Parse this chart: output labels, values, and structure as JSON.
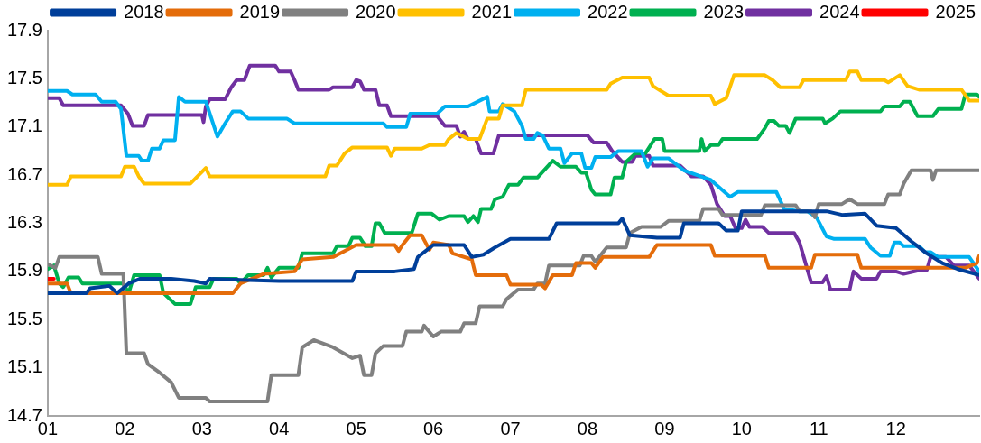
{
  "chart_data": {
    "type": "line",
    "legend": "top",
    "grid": false,
    "marker": "none",
    "line_style": "solid",
    "xlim": [
      1,
      13.08
    ],
    "xticks": [
      {
        "value": 1,
        "label": "01"
      },
      {
        "value": 2,
        "label": "02"
      },
      {
        "value": 3,
        "label": "03"
      },
      {
        "value": 4,
        "label": "04"
      },
      {
        "value": 5,
        "label": "05"
      },
      {
        "value": 6,
        "label": "06"
      },
      {
        "value": 7,
        "label": "07"
      },
      {
        "value": 8,
        "label": "08"
      },
      {
        "value": 9,
        "label": "09"
      },
      {
        "value": 10,
        "label": "10"
      },
      {
        "value": 11,
        "label": "11"
      },
      {
        "value": 12,
        "label": "12"
      }
    ],
    "ylim": [
      14.7,
      17.9
    ],
    "yticks": [
      14.7,
      15.1,
      15.5,
      15.9,
      16.3,
      16.7,
      17.1,
      17.5,
      17.9
    ],
    "series": [
      {
        "name": "2018",
        "color": "#003f9a",
        "x": [
          1.0,
          1.5,
          1.55,
          1.8,
          1.9,
          2.05,
          2.2,
          2.6,
          2.9,
          3.05,
          3.1,
          3.5,
          4.0,
          4.95,
          5.0,
          5.5,
          5.75,
          5.8,
          6.0,
          6.4,
          6.5,
          6.65,
          6.8,
          7.0,
          7.5,
          7.6,
          8.4,
          8.45,
          8.55,
          8.9,
          9.2,
          9.25,
          9.7,
          9.8,
          9.95,
          10.0,
          11.1,
          11.3,
          11.6,
          11.75,
          12.0,
          12.2,
          12.4,
          12.6,
          12.8,
          13.08
        ],
        "values": [
          15.72,
          15.72,
          15.76,
          15.78,
          15.72,
          15.8,
          15.84,
          15.84,
          15.82,
          15.8,
          15.84,
          15.83,
          15.82,
          15.82,
          15.9,
          15.9,
          15.92,
          16.02,
          16.12,
          16.12,
          16.02,
          16.04,
          16.1,
          16.17,
          16.17,
          16.3,
          16.3,
          16.34,
          16.2,
          16.18,
          16.18,
          16.3,
          16.3,
          16.24,
          16.24,
          16.4,
          16.4,
          16.37,
          16.38,
          16.28,
          16.26,
          16.15,
          16.05,
          15.97,
          15.92,
          15.87
        ]
      },
      {
        "name": "2019",
        "color": "#e46c0a",
        "x": [
          1.0,
          1.25,
          1.3,
          3.4,
          3.5,
          3.8,
          4.2,
          4.3,
          4.7,
          4.85,
          5.0,
          5.5,
          5.55,
          5.6,
          5.7,
          5.85,
          5.95,
          6.0,
          6.2,
          6.25,
          6.5,
          6.55,
          6.95,
          7.0,
          7.4,
          7.45,
          7.55,
          7.8,
          7.85,
          8.05,
          8.1,
          8.2,
          8.8,
          8.9,
          9.6,
          9.65,
          10.3,
          10.35,
          10.9,
          10.95,
          11.5,
          11.55,
          12.9,
          13.05,
          13.08
        ],
        "values": [
          15.8,
          15.8,
          15.72,
          15.72,
          15.8,
          15.88,
          15.9,
          16.0,
          16.02,
          16.07,
          16.12,
          16.12,
          16.07,
          16.12,
          16.2,
          16.2,
          16.08,
          16.14,
          16.12,
          16.05,
          16.0,
          15.87,
          15.87,
          15.79,
          15.79,
          15.76,
          15.87,
          15.87,
          15.97,
          15.97,
          15.93,
          16.02,
          16.02,
          16.12,
          16.12,
          16.03,
          16.03,
          15.93,
          15.93,
          16.04,
          16.04,
          15.93,
          15.93,
          15.97,
          16.03
        ]
      },
      {
        "name": "2020",
        "color": "#808080",
        "x": [
          1.0,
          1.1,
          1.15,
          1.65,
          1.7,
          1.98,
          2.02,
          2.25,
          2.3,
          2.45,
          2.6,
          2.7,
          3.05,
          3.1,
          3.85,
          3.9,
          4.25,
          4.3,
          4.45,
          4.7,
          4.95,
          5.05,
          5.1,
          5.2,
          5.25,
          5.35,
          5.6,
          5.65,
          5.85,
          5.88,
          6.0,
          6.1,
          6.35,
          6.4,
          6.55,
          6.6,
          6.9,
          6.95,
          7.1,
          7.3,
          7.35,
          7.45,
          7.5,
          7.9,
          7.95,
          8.05,
          8.1,
          8.25,
          8.5,
          8.55,
          8.7,
          8.95,
          9.05,
          9.45,
          9.5,
          9.7,
          9.75,
          10.25,
          10.3,
          10.7,
          10.75,
          10.9,
          10.95,
          11.0,
          11.3,
          11.4,
          11.5,
          11.85,
          11.9,
          12.05,
          12.1,
          12.2,
          12.45,
          12.48,
          12.52,
          13.08
        ],
        "values": [
          15.96,
          15.93,
          16.02,
          16.02,
          15.88,
          15.88,
          15.22,
          15.22,
          15.13,
          15.06,
          14.98,
          14.85,
          14.85,
          14.82,
          14.82,
          15.04,
          15.04,
          15.27,
          15.33,
          15.27,
          15.18,
          15.2,
          15.04,
          15.04,
          15.22,
          15.28,
          15.28,
          15.4,
          15.4,
          15.45,
          15.36,
          15.4,
          15.4,
          15.47,
          15.47,
          15.61,
          15.61,
          15.67,
          15.75,
          15.75,
          15.8,
          15.8,
          15.95,
          15.95,
          16.03,
          16.03,
          15.98,
          16.1,
          16.1,
          16.22,
          16.27,
          16.27,
          16.32,
          16.32,
          16.42,
          16.42,
          16.37,
          16.37,
          16.45,
          16.45,
          16.4,
          16.4,
          16.35,
          16.46,
          16.46,
          16.5,
          16.46,
          16.46,
          16.54,
          16.54,
          16.63,
          16.74,
          16.74,
          16.66,
          16.74,
          16.74
        ]
      },
      {
        "name": "2021",
        "color": "#ffc000",
        "x": [
          1.0,
          1.25,
          1.3,
          1.95,
          2.0,
          2.12,
          2.18,
          2.25,
          2.85,
          3.05,
          3.1,
          4.6,
          4.65,
          4.75,
          4.85,
          4.95,
          5.4,
          5.45,
          5.5,
          5.85,
          5.95,
          6.15,
          6.2,
          6.3,
          6.45,
          6.6,
          6.7,
          6.85,
          6.9,
          7.15,
          7.2,
          8.25,
          8.3,
          8.45,
          8.8,
          8.85,
          9.05,
          9.6,
          9.65,
          9.8,
          9.9,
          10.3,
          10.4,
          10.5,
          10.75,
          10.8,
          11.35,
          11.4,
          11.5,
          11.55,
          11.85,
          11.9,
          12.05,
          12.15,
          12.3,
          12.85,
          12.95,
          13.08
        ],
        "values": [
          16.62,
          16.62,
          16.69,
          16.69,
          16.77,
          16.77,
          16.69,
          16.63,
          16.63,
          16.76,
          16.69,
          16.69,
          16.78,
          16.78,
          16.88,
          16.93,
          16.93,
          16.86,
          16.92,
          16.92,
          16.95,
          16.95,
          17.0,
          17.05,
          17.0,
          17.0,
          17.17,
          17.17,
          17.28,
          17.28,
          17.41,
          17.41,
          17.46,
          17.51,
          17.51,
          17.44,
          17.36,
          17.36,
          17.29,
          17.34,
          17.53,
          17.53,
          17.49,
          17.43,
          17.43,
          17.49,
          17.49,
          17.56,
          17.56,
          17.49,
          17.49,
          17.47,
          17.53,
          17.44,
          17.41,
          17.41,
          17.32,
          17.32
        ]
      },
      {
        "name": "2022",
        "color": "#00b0f0",
        "x": [
          1.0,
          1.25,
          1.32,
          1.62,
          1.7,
          1.88,
          1.95,
          2.02,
          2.18,
          2.22,
          2.3,
          2.35,
          2.45,
          2.5,
          2.65,
          2.7,
          2.78,
          3.05,
          3.2,
          3.3,
          3.4,
          3.5,
          3.6,
          4.1,
          4.2,
          5.35,
          5.4,
          5.65,
          5.7,
          6.05,
          6.15,
          6.45,
          6.7,
          6.73,
          6.85,
          6.9,
          7.05,
          7.15,
          7.2,
          7.3,
          7.35,
          7.42,
          7.5,
          7.65,
          7.7,
          7.8,
          7.92,
          7.97,
          8.05,
          8.1,
          8.3,
          8.4,
          8.7,
          8.78,
          8.85,
          9.05,
          9.25,
          9.6,
          9.85,
          9.95,
          10.45,
          10.55,
          10.75,
          10.85,
          10.97,
          11.1,
          11.2,
          11.6,
          11.67,
          11.8,
          11.92,
          11.98,
          12.05,
          12.1,
          12.3,
          12.38,
          12.45,
          12.55,
          12.95,
          13.08
        ],
        "values": [
          17.4,
          17.4,
          17.37,
          17.37,
          17.31,
          17.31,
          17.25,
          16.86,
          16.86,
          16.82,
          16.82,
          16.92,
          16.92,
          16.99,
          16.99,
          17.35,
          17.31,
          17.31,
          17.02,
          17.13,
          17.23,
          17.23,
          17.17,
          17.17,
          17.13,
          17.13,
          17.1,
          17.1,
          17.21,
          17.21,
          17.27,
          17.27,
          17.35,
          17.23,
          17.23,
          17.29,
          17.23,
          17.11,
          17.0,
          17.0,
          17.05,
          17.03,
          16.92,
          16.92,
          16.8,
          16.88,
          16.88,
          16.76,
          16.76,
          16.85,
          16.85,
          16.9,
          16.9,
          16.77,
          16.84,
          16.84,
          16.74,
          16.66,
          16.52,
          16.56,
          16.56,
          16.42,
          16.4,
          16.4,
          16.35,
          16.19,
          16.17,
          16.17,
          16.1,
          16.03,
          16.03,
          16.14,
          16.14,
          16.11,
          16.11,
          16.06,
          16.06,
          16.02,
          16.02,
          15.9
        ]
      },
      {
        "name": "2023",
        "color": "#00b050",
        "x": [
          1.0,
          1.08,
          1.15,
          1.2,
          1.27,
          1.4,
          1.45,
          1.98,
          2.05,
          2.12,
          2.45,
          2.5,
          2.65,
          2.85,
          2.92,
          3.1,
          3.15,
          3.45,
          3.5,
          3.6,
          3.8,
          3.85,
          3.9,
          4.0,
          4.25,
          4.3,
          4.7,
          4.75,
          4.9,
          4.95,
          5.05,
          5.12,
          5.2,
          5.25,
          5.3,
          5.37,
          5.72,
          5.8,
          5.98,
          6.08,
          6.2,
          6.4,
          6.45,
          6.52,
          6.58,
          6.62,
          6.75,
          6.8,
          6.9,
          6.98,
          7.1,
          7.17,
          7.35,
          7.55,
          7.65,
          7.85,
          7.92,
          7.98,
          8.05,
          8.1,
          8.3,
          8.35,
          8.45,
          8.5,
          8.62,
          8.75,
          8.87,
          8.97,
          9.0,
          9.45,
          9.48,
          9.52,
          9.6,
          9.7,
          9.75,
          10.2,
          10.3,
          10.35,
          10.42,
          10.48,
          10.57,
          10.62,
          10.7,
          11.05,
          11.08,
          11.18,
          11.28,
          11.8,
          11.85,
          12.05,
          12.1,
          12.18,
          12.28,
          12.48,
          12.55,
          12.85,
          12.9,
          13.05,
          13.08
        ],
        "values": [
          15.92,
          15.95,
          15.8,
          15.77,
          15.85,
          15.85,
          15.8,
          15.8,
          15.72,
          15.87,
          15.87,
          15.72,
          15.63,
          15.63,
          15.77,
          15.77,
          15.84,
          15.84,
          15.8,
          15.87,
          15.87,
          15.93,
          15.85,
          15.93,
          15.93,
          16.05,
          16.05,
          16.11,
          16.11,
          16.18,
          16.18,
          16.11,
          16.11,
          16.3,
          16.3,
          16.22,
          16.22,
          16.38,
          16.38,
          16.33,
          16.36,
          16.36,
          16.31,
          16.36,
          16.31,
          16.42,
          16.42,
          16.5,
          16.52,
          16.62,
          16.62,
          16.68,
          16.68,
          16.82,
          16.77,
          16.77,
          16.72,
          16.72,
          16.58,
          16.54,
          16.54,
          16.68,
          16.68,
          16.81,
          16.88,
          16.88,
          17.0,
          17.0,
          16.9,
          16.9,
          17.0,
          16.9,
          16.95,
          16.95,
          17.0,
          17.0,
          17.09,
          17.15,
          17.15,
          17.11,
          17.11,
          17.05,
          17.17,
          17.17,
          17.13,
          17.17,
          17.23,
          17.23,
          17.27,
          17.27,
          17.31,
          17.31,
          17.19,
          17.19,
          17.25,
          17.25,
          17.37,
          17.37,
          17.35
        ]
      },
      {
        "name": "2024",
        "color": "#7030a0",
        "x": [
          1.0,
          1.15,
          1.2,
          1.95,
          2.04,
          2.1,
          2.25,
          2.3,
          3.0,
          3.02,
          3.05,
          3.1,
          3.3,
          3.38,
          3.45,
          3.55,
          3.62,
          3.95,
          4.0,
          4.15,
          4.2,
          4.25,
          4.65,
          4.7,
          4.95,
          5.0,
          5.05,
          5.1,
          5.25,
          5.3,
          5.4,
          5.45,
          6.05,
          6.15,
          6.3,
          6.35,
          6.4,
          6.45,
          6.55,
          6.62,
          6.78,
          6.85,
          8.0,
          8.08,
          8.25,
          8.32,
          8.45,
          8.58,
          8.62,
          8.8,
          8.85,
          9.2,
          9.35,
          9.5,
          9.6,
          9.68,
          9.78,
          9.85,
          9.92,
          10.0,
          10.05,
          10.1,
          10.27,
          10.35,
          10.68,
          10.75,
          10.9,
          11.05,
          11.1,
          11.15,
          11.4,
          11.45,
          11.55,
          11.75,
          11.8,
          12.0,
          12.1,
          12.3,
          12.4,
          12.45,
          12.65,
          12.75,
          12.95,
          13.08
        ],
        "values": [
          17.34,
          17.34,
          17.28,
          17.28,
          17.21,
          17.11,
          17.11,
          17.2,
          17.2,
          17.14,
          17.27,
          17.33,
          17.33,
          17.43,
          17.49,
          17.49,
          17.61,
          17.61,
          17.56,
          17.56,
          17.49,
          17.41,
          17.41,
          17.43,
          17.43,
          17.49,
          17.48,
          17.41,
          17.41,
          17.28,
          17.28,
          17.19,
          17.19,
          17.11,
          17.11,
          17.02,
          17.06,
          17.0,
          17.0,
          16.88,
          16.88,
          17.03,
          17.03,
          16.97,
          16.97,
          16.9,
          16.81,
          16.81,
          16.86,
          16.86,
          16.78,
          16.78,
          16.69,
          16.69,
          16.62,
          16.46,
          16.36,
          16.36,
          16.26,
          16.26,
          16.33,
          16.27,
          16.27,
          16.22,
          16.22,
          16.14,
          15.81,
          15.81,
          15.86,
          15.75,
          15.75,
          15.9,
          15.84,
          15.84,
          15.9,
          15.9,
          15.88,
          15.91,
          15.91,
          16.02,
          16.02,
          15.95,
          15.95,
          15.84
        ]
      },
      {
        "name": "2025",
        "color": "#ff0000",
        "x": [
          1.0,
          1.08
        ],
        "values": [
          15.84,
          15.84
        ]
      }
    ]
  }
}
